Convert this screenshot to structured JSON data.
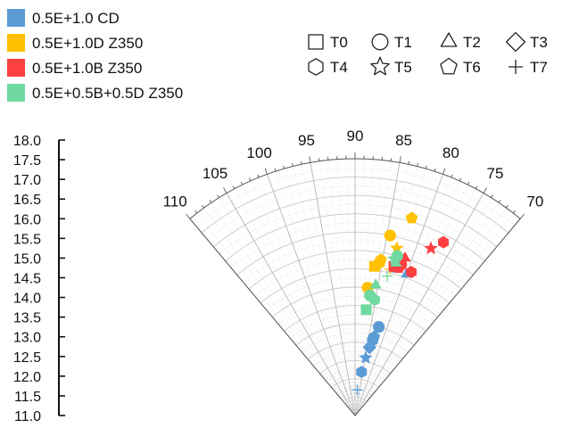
{
  "chart_data": {
    "type": "polar-scatter",
    "title": "",
    "angle_axis": {
      "range": [
        70,
        110
      ],
      "ticks": [
        "70",
        "75",
        "80",
        "85",
        "90",
        "95",
        "100",
        "105",
        "110"
      ],
      "grid": true
    },
    "radial_axis": {
      "range": [
        11.0,
        18.0
      ],
      "ticks": [
        "11.0",
        "11.5",
        "12.0",
        "12.5",
        "13.0",
        "13.5",
        "14.0",
        "14.5",
        "15.0",
        "15.5",
        "16.0",
        "16.5",
        "17.0",
        "17.5",
        "18.0"
      ],
      "grid": true
    },
    "color_legend": [
      {
        "label": "0.5E+1.0 CD",
        "color": "#5b9bd5"
      },
      {
        "label": "0.5E+1.0D Z350",
        "color": "#ffc000"
      },
      {
        "label": "0.5E+1.0B Z350",
        "color": "#ff4040"
      },
      {
        "label": "0.5E+0.5B+0.5D Z350",
        "color": "#70d9a0"
      }
    ],
    "marker_legend": [
      {
        "label": "T0",
        "marker": "square"
      },
      {
        "label": "T1",
        "marker": "circle"
      },
      {
        "label": "T2",
        "marker": "triangle"
      },
      {
        "label": "T3",
        "marker": "diamond"
      },
      {
        "label": "T4",
        "marker": "hexagon"
      },
      {
        "label": "T5",
        "marker": "star"
      },
      {
        "label": "T6",
        "marker": "pentagon"
      },
      {
        "label": "T7",
        "marker": "plus"
      }
    ],
    "series": [
      {
        "color_index": 0,
        "points": [
          {
            "angle": 80.0,
            "r": 15.1,
            "marker": "triangle"
          },
          {
            "angle": 82.2,
            "r": 15.2,
            "marker": "square"
          },
          {
            "angle": 82.5,
            "r": 13.5,
            "marker": "circle"
          },
          {
            "angle": 83.5,
            "r": 13.1,
            "marker": "hexagon"
          },
          {
            "angle": 83.2,
            "r": 13.2,
            "marker": "pentagon"
          },
          {
            "angle": 84.0,
            "r": 12.9,
            "marker": "diamond"
          },
          {
            "angle": 84.8,
            "r": 12.6,
            "marker": "star"
          },
          {
            "angle": 85.8,
            "r": 12.2,
            "marker": "hexagon"
          },
          {
            "angle": 87.5,
            "r": 11.7,
            "marker": "plus"
          }
        ]
      },
      {
        "color_index": 1,
        "points": [
          {
            "angle": 82.0,
            "r": 16.6,
            "marker": "pentagon"
          },
          {
            "angle": 84.5,
            "r": 16.0,
            "marker": "circle"
          },
          {
            "angle": 83.0,
            "r": 15.7,
            "marker": "star"
          },
          {
            "angle": 85.3,
            "r": 15.3,
            "marker": "pentagon"
          },
          {
            "angle": 85.5,
            "r": 15.2,
            "marker": "hexagon"
          },
          {
            "angle": 86.3,
            "r": 15.1,
            "marker": "square"
          },
          {
            "angle": 85.8,
            "r": 15.2,
            "marker": "triangle"
          },
          {
            "angle": 87.2,
            "r": 14.5,
            "marker": "circle"
          },
          {
            "angle": 83.3,
            "r": 15.1,
            "marker": "plus"
          }
        ]
      },
      {
        "color_index": 2,
        "points": [
          {
            "angle": 76.5,
            "r": 16.3,
            "marker": "hexagon"
          },
          {
            "angle": 77.8,
            "r": 16.0,
            "marker": "star"
          },
          {
            "angle": 81.2,
            "r": 15.5,
            "marker": "triangle"
          },
          {
            "angle": 81.5,
            "r": 15.3,
            "marker": "circle"
          },
          {
            "angle": 81.8,
            "r": 15.2,
            "marker": "pentagon"
          },
          {
            "angle": 79.3,
            "r": 15.2,
            "marker": "hexagon"
          },
          {
            "angle": 82.7,
            "r": 15.2,
            "marker": "square"
          }
        ]
      },
      {
        "color_index": 3,
        "points": [
          {
            "angle": 82.6,
            "r": 15.5,
            "marker": "circle"
          },
          {
            "angle": 82.5,
            "r": 15.3,
            "marker": "triangle"
          },
          {
            "angle": 83.0,
            "r": 15.4,
            "marker": "star"
          },
          {
            "angle": 85.5,
            "r": 14.6,
            "marker": "triangle"
          },
          {
            "angle": 86.5,
            "r": 14.3,
            "marker": "circle"
          },
          {
            "angle": 85.2,
            "r": 14.2,
            "marker": "hexagon"
          },
          {
            "angle": 87.0,
            "r": 13.9,
            "marker": "square"
          },
          {
            "angle": 83.5,
            "r": 14.9,
            "marker": "plus"
          }
        ]
      }
    ]
  }
}
